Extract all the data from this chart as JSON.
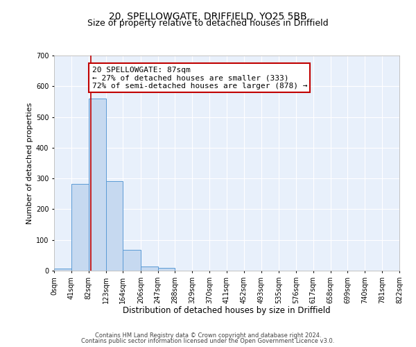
{
  "title1": "20, SPELLOWGATE, DRIFFIELD, YO25 5BB",
  "title2": "Size of property relative to detached houses in Driffield",
  "xlabel": "Distribution of detached houses by size in Driffield",
  "ylabel": "Number of detached properties",
  "bar_edges": [
    0,
    41,
    82,
    123,
    164,
    206,
    247,
    288,
    329,
    370,
    411,
    452,
    493,
    535,
    576,
    617,
    658,
    699,
    740,
    781,
    822
  ],
  "bar_heights": [
    7,
    282,
    560,
    292,
    68,
    13,
    8,
    0,
    0,
    0,
    0,
    0,
    0,
    0,
    0,
    0,
    0,
    0,
    0,
    0
  ],
  "bar_color": "#c6d9f0",
  "bar_edge_color": "#5b9bd5",
  "tick_labels": [
    "0sqm",
    "41sqm",
    "82sqm",
    "123sqm",
    "164sqm",
    "206sqm",
    "247sqm",
    "288sqm",
    "329sqm",
    "370sqm",
    "411sqm",
    "452sqm",
    "493sqm",
    "535sqm",
    "576sqm",
    "617sqm",
    "658sqm",
    "699sqm",
    "740sqm",
    "781sqm",
    "822sqm"
  ],
  "vline_x": 87,
  "vline_color": "#c00000",
  "annotation_line1": "20 SPELLOWGATE: 87sqm",
  "annotation_line2": "← 27% of detached houses are smaller (333)",
  "annotation_line3": "72% of semi-detached houses are larger (878) →",
  "annotation_box_color": "#c00000",
  "ylim": [
    0,
    700
  ],
  "yticks": [
    0,
    100,
    200,
    300,
    400,
    500,
    600,
    700
  ],
  "footer1": "Contains HM Land Registry data © Crown copyright and database right 2024.",
  "footer2": "Contains public sector information licensed under the Open Government Licence v3.0.",
  "bg_color": "#e8f0fb",
  "title1_fontsize": 10,
  "title2_fontsize": 9,
  "xlabel_fontsize": 8.5,
  "ylabel_fontsize": 8,
  "tick_fontsize": 7,
  "annotation_fontsize": 8,
  "footer_fontsize": 6
}
